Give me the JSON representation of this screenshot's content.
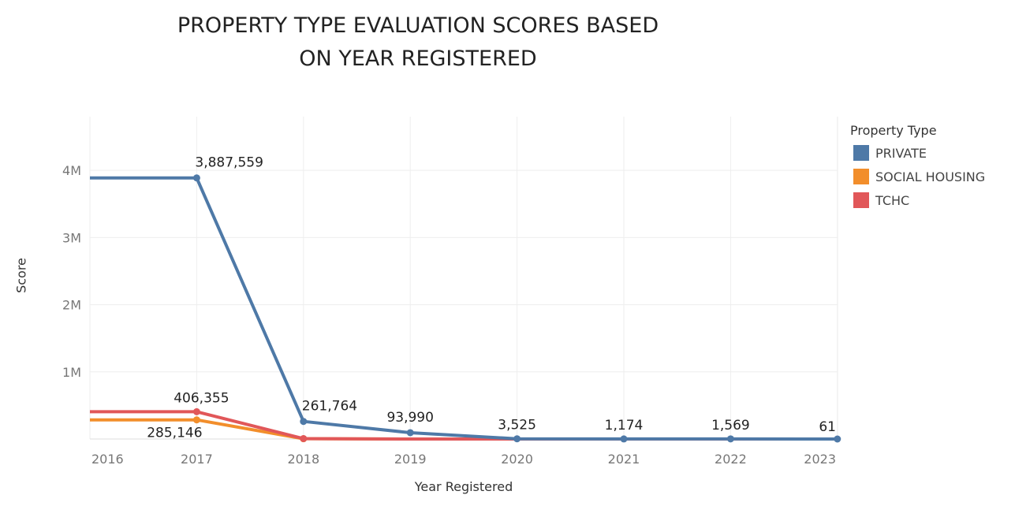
{
  "colors": {
    "private": "#4e79a7",
    "social_housing": "#f28e2b",
    "tchc": "#e15759"
  },
  "chart_data": {
    "type": "line",
    "title_lines": [
      "PROPERTY TYPE EVALUATION SCORES BASED",
      "ON YEAR REGISTERED"
    ],
    "xlabel": "Year Registered",
    "ylabel": "Score",
    "x": [
      "2016",
      "2017",
      "2018",
      "2019",
      "2020",
      "2021",
      "2022",
      "2023"
    ],
    "ylim": [
      0,
      4800000
    ],
    "yticks": [
      {
        "value": 1000000,
        "label": "1M"
      },
      {
        "value": 2000000,
        "label": "2M"
      },
      {
        "value": 3000000,
        "label": "3M"
      },
      {
        "value": 4000000,
        "label": "4M"
      }
    ],
    "grid": true,
    "legend_position": "right",
    "legend_title": "Property Type",
    "series": [
      {
        "name": "PRIVATE",
        "color": "#4e79a7",
        "values": [
          3887559,
          3887559,
          261764,
          93990,
          3525,
          1174,
          1569,
          61
        ],
        "labels": [
          null,
          "3,887,559",
          "261,764",
          "93,990",
          "3,525",
          "1,174",
          "1,569",
          "61"
        ]
      },
      {
        "name": "SOCIAL HOUSING",
        "color": "#f28e2b",
        "values": [
          285146,
          285146,
          4000,
          0,
          0,
          0,
          0,
          0
        ],
        "labels": [
          null,
          "285,146",
          null,
          null,
          null,
          null,
          null,
          null
        ]
      },
      {
        "name": "TCHC",
        "color": "#e15759",
        "values": [
          406355,
          406355,
          6000,
          0,
          0,
          0,
          0,
          0
        ],
        "labels": [
          null,
          "406,355",
          null,
          null,
          null,
          null,
          null,
          null
        ]
      }
    ]
  }
}
